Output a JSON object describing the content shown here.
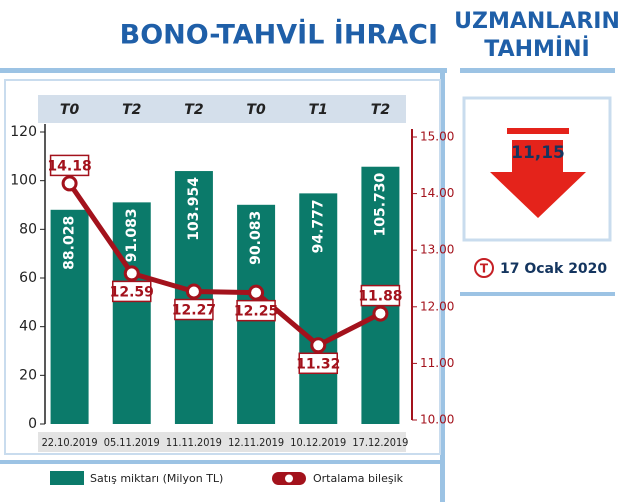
{
  "chart_data": {
    "type": "bar",
    "title": "BONO-TAHVİL İHRACI",
    "categories": [
      "22.10.2019",
      "05.11.2019",
      "11.11.2019",
      "12.11.2019",
      "10.12.2019",
      "17.12.2019"
    ],
    "terms": [
      "T0",
      "T2",
      "T2",
      "T0",
      "T1",
      "T2"
    ],
    "series": [
      {
        "name": "Satış miktarı (Milyon TL)",
        "color": "#0b7a6a",
        "values": [
          88.028,
          91.083,
          103.954,
          90.083,
          94.777,
          105.73
        ],
        "value_labels": [
          "88.028",
          "91.083",
          "103.954",
          "90.083",
          "94.777",
          "105.730"
        ]
      },
      {
        "name": "Ortalama bileşik",
        "color": "#a3121c",
        "axis": "y2",
        "type": "line",
        "values": [
          14.18,
          12.59,
          12.27,
          12.25,
          11.32,
          11.88
        ]
      }
    ],
    "ylim": [
      0,
      120
    ],
    "yticks": [
      0,
      20,
      40,
      60,
      80,
      100,
      120
    ],
    "y2lim": [
      10,
      15
    ],
    "y2ticks": [
      {
        "value": 10,
        "label": "10.00"
      },
      {
        "value": 11,
        "label": "11.00"
      },
      {
        "value": 12,
        "label": "12.00"
      },
      {
        "value": 13,
        "label": "13.00"
      },
      {
        "value": 14,
        "label": "14.00"
      },
      {
        "value": 15,
        "label": "15.00"
      }
    ]
  },
  "sidebar": {
    "title_lines": [
      "UZMANLARIN",
      "TAHMİNİ"
    ],
    "forecast": "11,15",
    "logo": "T",
    "date": "17 Ocak 2020"
  }
}
